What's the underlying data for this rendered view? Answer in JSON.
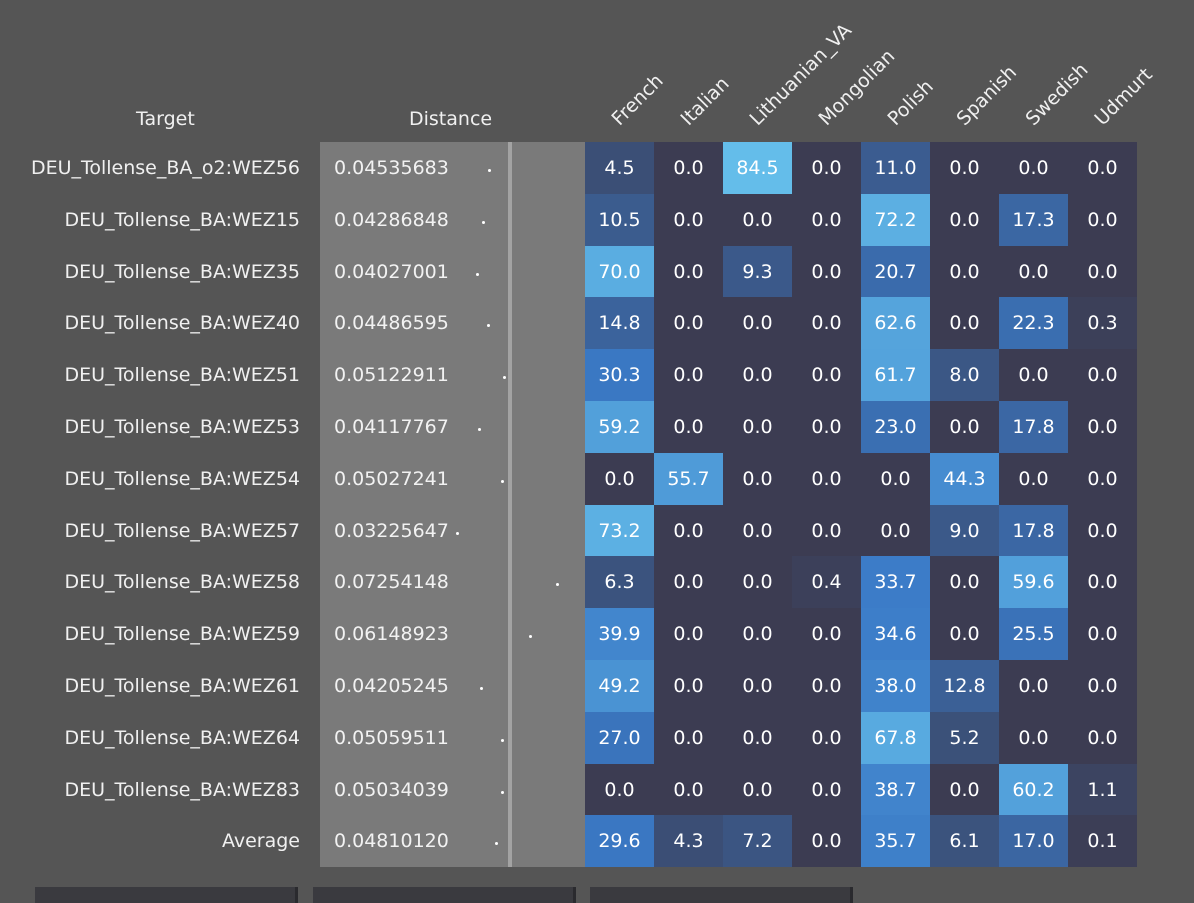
{
  "chart_data": {
    "type": "heatmap",
    "headers": {
      "target": "Target",
      "distance": "Distance"
    },
    "columns": [
      "French",
      "Italian",
      "Lithuanian_VA",
      "Mongolian",
      "Polish",
      "Spanish",
      "Swedish",
      "Udmurt"
    ],
    "rows": [
      {
        "target": "DEU_Tollense_BA_o2:WEZ56",
        "distance": "0.04535683",
        "values": [
          4.5,
          0.0,
          84.5,
          0.0,
          11.0,
          0.0,
          0.0,
          0.0
        ]
      },
      {
        "target": "DEU_Tollense_BA:WEZ15",
        "distance": "0.04286848",
        "values": [
          10.5,
          0.0,
          0.0,
          0.0,
          72.2,
          0.0,
          17.3,
          0.0
        ]
      },
      {
        "target": "DEU_Tollense_BA:WEZ35",
        "distance": "0.04027001",
        "values": [
          70.0,
          0.0,
          9.3,
          0.0,
          20.7,
          0.0,
          0.0,
          0.0
        ]
      },
      {
        "target": "DEU_Tollense_BA:WEZ40",
        "distance": "0.04486595",
        "values": [
          14.8,
          0.0,
          0.0,
          0.0,
          62.6,
          0.0,
          22.3,
          0.3
        ]
      },
      {
        "target": "DEU_Tollense_BA:WEZ51",
        "distance": "0.05122911",
        "values": [
          30.3,
          0.0,
          0.0,
          0.0,
          61.7,
          8.0,
          0.0,
          0.0
        ]
      },
      {
        "target": "DEU_Tollense_BA:WEZ53",
        "distance": "0.04117767",
        "values": [
          59.2,
          0.0,
          0.0,
          0.0,
          23.0,
          0.0,
          17.8,
          0.0
        ]
      },
      {
        "target": "DEU_Tollense_BA:WEZ54",
        "distance": "0.05027241",
        "values": [
          0.0,
          55.7,
          0.0,
          0.0,
          0.0,
          44.3,
          0.0,
          0.0
        ]
      },
      {
        "target": "DEU_Tollense_BA:WEZ57",
        "distance": "0.03225647",
        "values": [
          73.2,
          0.0,
          0.0,
          0.0,
          0.0,
          9.0,
          17.8,
          0.0
        ]
      },
      {
        "target": "DEU_Tollense_BA:WEZ58",
        "distance": "0.07254148",
        "values": [
          6.3,
          0.0,
          0.0,
          0.4,
          33.7,
          0.0,
          59.6,
          0.0
        ]
      },
      {
        "target": "DEU_Tollense_BA:WEZ59",
        "distance": "0.06148923",
        "values": [
          39.9,
          0.0,
          0.0,
          0.0,
          34.6,
          0.0,
          25.5,
          0.0
        ]
      },
      {
        "target": "DEU_Tollense_BA:WEZ61",
        "distance": "0.04205245",
        "values": [
          49.2,
          0.0,
          0.0,
          0.0,
          38.0,
          12.8,
          0.0,
          0.0
        ]
      },
      {
        "target": "DEU_Tollense_BA:WEZ64",
        "distance": "0.05059511",
        "values": [
          27.0,
          0.0,
          0.0,
          0.0,
          67.8,
          5.2,
          0.0,
          0.0
        ]
      },
      {
        "target": "DEU_Tollense_BA:WEZ83",
        "distance": "0.05034039",
        "values": [
          0.0,
          0.0,
          0.0,
          0.0,
          38.7,
          0.0,
          60.2,
          1.1
        ]
      },
      {
        "target": "Average",
        "distance": "0.04810120",
        "values": [
          29.6,
          4.3,
          7.2,
          0.0,
          35.7,
          6.1,
          17.0,
          0.1
        ]
      }
    ],
    "distance_range": [
      0,
      0.08
    ],
    "value_range": [
      0,
      100
    ],
    "colors": {
      "background": "#555555",
      "distance_panel": "#7a7a7a",
      "cell_low": "#3c3c52",
      "cell_mid": "#3a79c6",
      "cell_high": "#6ecdf2"
    }
  }
}
